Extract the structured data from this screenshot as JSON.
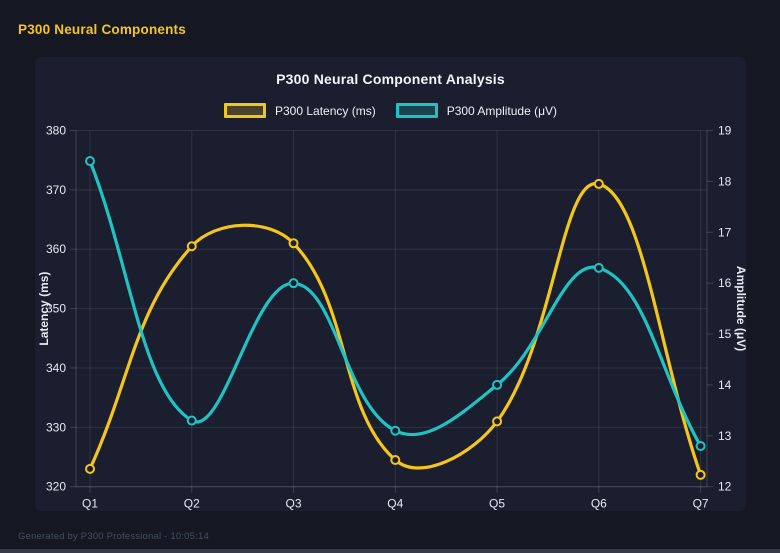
{
  "page": {
    "header_title": "P300 Neural Components",
    "footer_text": "Generated by P300 Professional - 10:05:14"
  },
  "colors": {
    "background": "#151823",
    "panel": "#1a1e2f",
    "accent_gold": "#f7c51e",
    "accent_teal": "#1fc3c3"
  },
  "chart_data": {
    "type": "line",
    "title": "P300 Neural Component Analysis",
    "categories": [
      "Q1",
      "Q2",
      "Q3",
      "Q4",
      "Q5",
      "Q6",
      "Q7"
    ],
    "series": [
      {
        "name": "P300 Latency (ms)",
        "axis": "left",
        "color": "#f5c61a",
        "values": [
          323,
          360.5,
          361,
          324.5,
          331,
          371,
          322
        ]
      },
      {
        "name": "P300 Amplitude (μV)",
        "axis": "right",
        "color": "#1fc3c3",
        "values": [
          18.4,
          13.3,
          16.0,
          13.1,
          14.0,
          16.3,
          12.8
        ]
      }
    ],
    "left_axis": {
      "label": "Latency (ms)",
      "min": 320,
      "max": 380,
      "step": 10
    },
    "right_axis": {
      "label": "Amplitude (μV)",
      "min": 12,
      "max": 19,
      "step": 1
    },
    "grid": true,
    "legend_position": "top",
    "curve": "spline",
    "tension": 0.4
  }
}
